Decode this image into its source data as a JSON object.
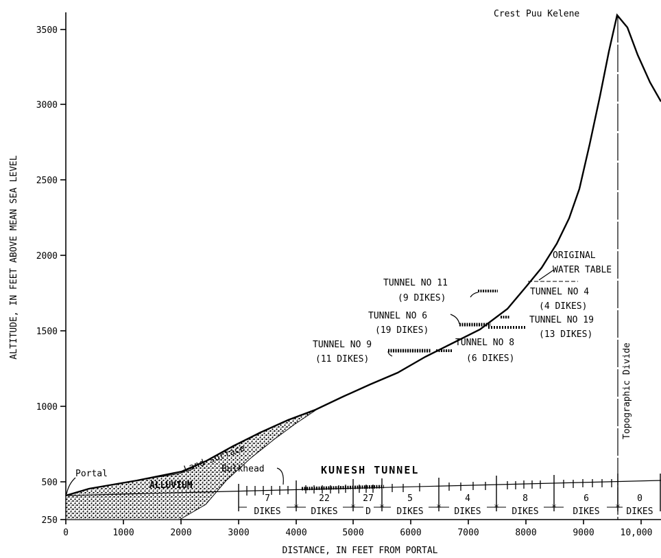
{
  "axes": {
    "ylabel": "ALTITUDE, IN FEET ABOVE MEAN SEA LEVEL",
    "xlabel": "DISTANCE, IN FEET FROM PORTAL",
    "y_ticks": [
      "250",
      "500",
      "1000",
      "1500",
      "2000",
      "2500",
      "3000",
      "3500"
    ],
    "x_ticks": [
      "0",
      "1000",
      "2000",
      "3000",
      "4000",
      "5000",
      "6000",
      "7000",
      "8000",
      "9000",
      "10,000"
    ]
  },
  "labels": {
    "crest": "Crest Puu Kelene",
    "portal": "Portal",
    "land_surface": "Land surface",
    "alluvium": "ALLUVIUM",
    "bulkhead": "Bulkhead",
    "kunesh_tunnel": "KUNESH TUNNEL",
    "topographic_divide": "Topographic Divide",
    "original_water_table_1": "ORIGINAL",
    "original_water_table_2": "WATER TABLE"
  },
  "tunnels": [
    {
      "name": "TUNNEL NO 11",
      "dikes": "(9 DIKES)"
    },
    {
      "name": "TUNNEL NO 6",
      "dikes": "(19 DIKES)"
    },
    {
      "name": "TUNNEL NO 9",
      "dikes": "(11 DIKES)"
    },
    {
      "name": "TUNNEL NO 8",
      "dikes": "(6 DIKES)"
    },
    {
      "name": "TUNNEL NO 4",
      "dikes": "(4 DIKES)"
    },
    {
      "name": "TUNNEL NO 19",
      "dikes": "(13 DIKES)"
    }
  ],
  "dike_segments": [
    {
      "count": "7",
      "word": "DIKES"
    },
    {
      "count": "22",
      "word": "DIKES"
    },
    {
      "count": "27",
      "word": "D"
    },
    {
      "count": "5",
      "word": "DIKES"
    },
    {
      "count": "4",
      "word": "DIKES"
    },
    {
      "count": "8",
      "word": "DIKES"
    },
    {
      "count": "6",
      "word": "DIKES"
    },
    {
      "count": "0",
      "word": "DIKES"
    }
  ]
}
